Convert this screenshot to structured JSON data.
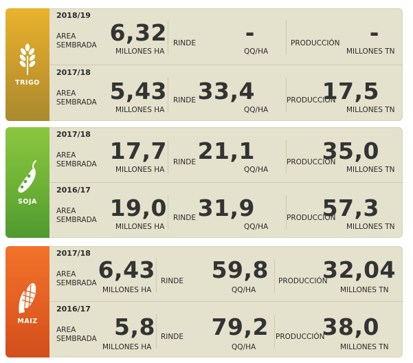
{
  "labels": {
    "area_line1": "AREA",
    "area_line2": "SEMBRADA",
    "rinde": "RINDE",
    "produccion": "PRODUCCIÓN",
    "unit_area": "MILLONES HA",
    "unit_rinde": "QQ/HA",
    "unit_prod": "MILLONES TN"
  },
  "crops": [
    {
      "name": "TRIGO",
      "icon": "wheat-icon",
      "rows": [
        {
          "year": "2018/19",
          "area": "6,32",
          "rinde": "-",
          "produccion": "-"
        },
        {
          "year": "2017/18",
          "area": "5,43",
          "rinde": "33,4",
          "produccion": "17,5"
        }
      ]
    },
    {
      "name": "SOJA",
      "icon": "soybean-icon",
      "rows": [
        {
          "year": "2017/18",
          "area": "17,7",
          "rinde": "21,1",
          "produccion": "35,0"
        },
        {
          "year": "2016/17",
          "area": "19,0",
          "rinde": "31,9",
          "produccion": "57,3"
        }
      ]
    },
    {
      "name": "MAIZ",
      "icon": "corn-icon",
      "rows": [
        {
          "year": "2017/18",
          "area": "6,43",
          "rinde": "59,8",
          "produccion": "32,04"
        },
        {
          "year": "2016/17",
          "area": "5,8",
          "rinde": "79,2",
          "produccion": "38,0"
        }
      ]
    }
  ],
  "colors": {
    "trigo_top": "#e9b32c",
    "trigo_bottom": "#a98a2e",
    "soja_top": "#8cc63f",
    "soja_bottom": "#4f9a2e",
    "maiz_top": "#f2732a",
    "maiz_bottom": "#d24e1b",
    "panel": "#e4e1cc"
  }
}
